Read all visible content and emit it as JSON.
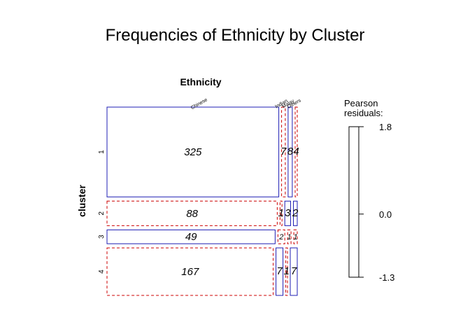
{
  "chart_data": {
    "type": "mosaic",
    "title": "Frequencies of Ethnicity by Cluster",
    "column_variable": "Ethnicity",
    "row_variable": "cluster",
    "column_levels": [
      "Chinese",
      "Indian",
      "Malay",
      "Others"
    ],
    "row_levels": [
      "1",
      "2",
      "3",
      "4"
    ],
    "counts": [
      [
        325,
        7,
        8,
        4
      ],
      [
        88,
        1,
        3,
        2
      ],
      [
        49,
        2,
        1,
        1
      ],
      [
        167,
        7,
        1,
        7
      ]
    ],
    "cell_labels": [
      [
        "325",
        "7",
        "8",
        "4"
      ],
      [
        "88",
        "1",
        "3",
        "2"
      ],
      [
        "49",
        "2",
        "1",
        "1"
      ],
      [
        "167",
        "7",
        "1",
        "7"
      ]
    ],
    "residual_sign": [
      [
        "positive",
        "negative",
        "positive",
        "negative"
      ],
      [
        "negative",
        "negative",
        "positive",
        "positive"
      ],
      [
        "positive",
        "negative",
        "negative",
        "negative"
      ],
      [
        "negative",
        "positive",
        "negative",
        "positive"
      ]
    ],
    "legend": {
      "title_line1": "Pearson",
      "title_line2": "residuals:",
      "ticks": [
        "1.8",
        "0.0",
        "-1.3"
      ],
      "max": 1.8,
      "min": -1.3,
      "zero": 0.0
    },
    "colors": {
      "positive": "#1f1fb4",
      "negative": "#cc0000",
      "legend_outline": "#000000"
    }
  }
}
